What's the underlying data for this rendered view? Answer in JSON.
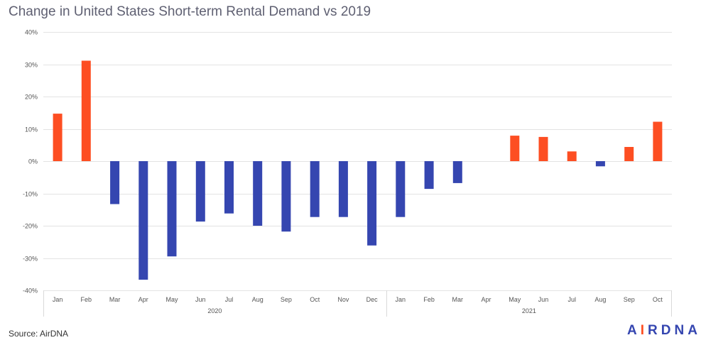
{
  "chart_data": {
    "type": "bar",
    "title": "Change in United States Short-term Rental Demand vs 2019",
    "xlabel": "",
    "ylabel": "",
    "ylim": [
      -40,
      40
    ],
    "y_ticks": [
      40,
      30,
      20,
      10,
      0,
      -10,
      -20,
      -30,
      -40
    ],
    "y_tick_labels": [
      "40%",
      "30%",
      "20%",
      "10%",
      "0%",
      "-10%",
      "-20%",
      "-30%",
      "-40%"
    ],
    "categories": [
      "Jan",
      "Feb",
      "Mar",
      "Apr",
      "May",
      "Jun",
      "Jul",
      "Aug",
      "Sep",
      "Oct",
      "Nov",
      "Dec",
      "Jan",
      "Feb",
      "Mar",
      "Apr",
      "May",
      "Jun",
      "Jul",
      "Aug",
      "Sep",
      "Oct"
    ],
    "groups": [
      {
        "label": "2020",
        "count": 12
      },
      {
        "label": "2021",
        "count": 10
      }
    ],
    "values": [
      14.7,
      31.1,
      -13.3,
      -36.7,
      -29.5,
      -18.7,
      -16.2,
      -20.0,
      -21.8,
      -17.3,
      -17.3,
      -26.1,
      -17.3,
      -8.6,
      -6.8,
      null,
      7.9,
      7.5,
      3.0,
      -1.6,
      4.4,
      12.2
    ],
    "colors": {
      "positive": "#fd4e22",
      "negative": "#3546b0",
      "grid": "#e3e3e3",
      "axis": "#d9d9d9"
    },
    "grid": true
  },
  "source": "Source: AirDNA",
  "logo": {
    "text": "AIRDNA",
    "color": "#3546b0",
    "accent_color": "#fd4e22"
  }
}
